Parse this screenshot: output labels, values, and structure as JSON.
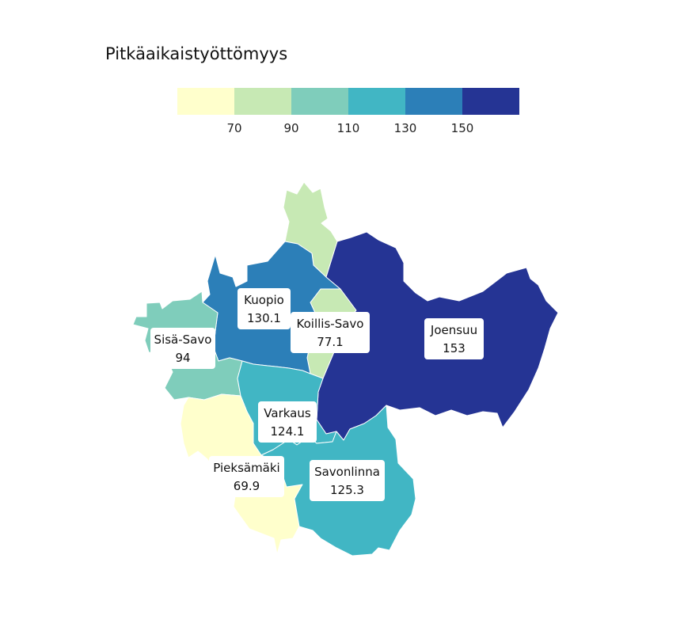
{
  "title": "Pitkäaikaistyöttömyys",
  "legend": {
    "colors": [
      "#ffffcc",
      "#c7e9b4",
      "#7fcdbb",
      "#41b6c4",
      "#2c7fb8",
      "#253494"
    ],
    "ticks": [
      "70",
      "90",
      "110",
      "130",
      "150"
    ]
  },
  "regions": [
    {
      "id": "joensuu",
      "name": "Joensuu",
      "value": "153"
    },
    {
      "id": "kuopio",
      "name": "Kuopio",
      "value": "130.1"
    },
    {
      "id": "koillis-savo",
      "name": "Koillis-Savo",
      "value": "77.1"
    },
    {
      "id": "sisa-savo",
      "name": "Sisä-Savo",
      "value": "94"
    },
    {
      "id": "varkaus",
      "name": "Varkaus",
      "value": "124.1"
    },
    {
      "id": "pieksamaki",
      "name": "Pieksämäki",
      "value": "69.9"
    },
    {
      "id": "savonlinna",
      "name": "Savonlinna",
      "value": "125.3"
    }
  ]
}
